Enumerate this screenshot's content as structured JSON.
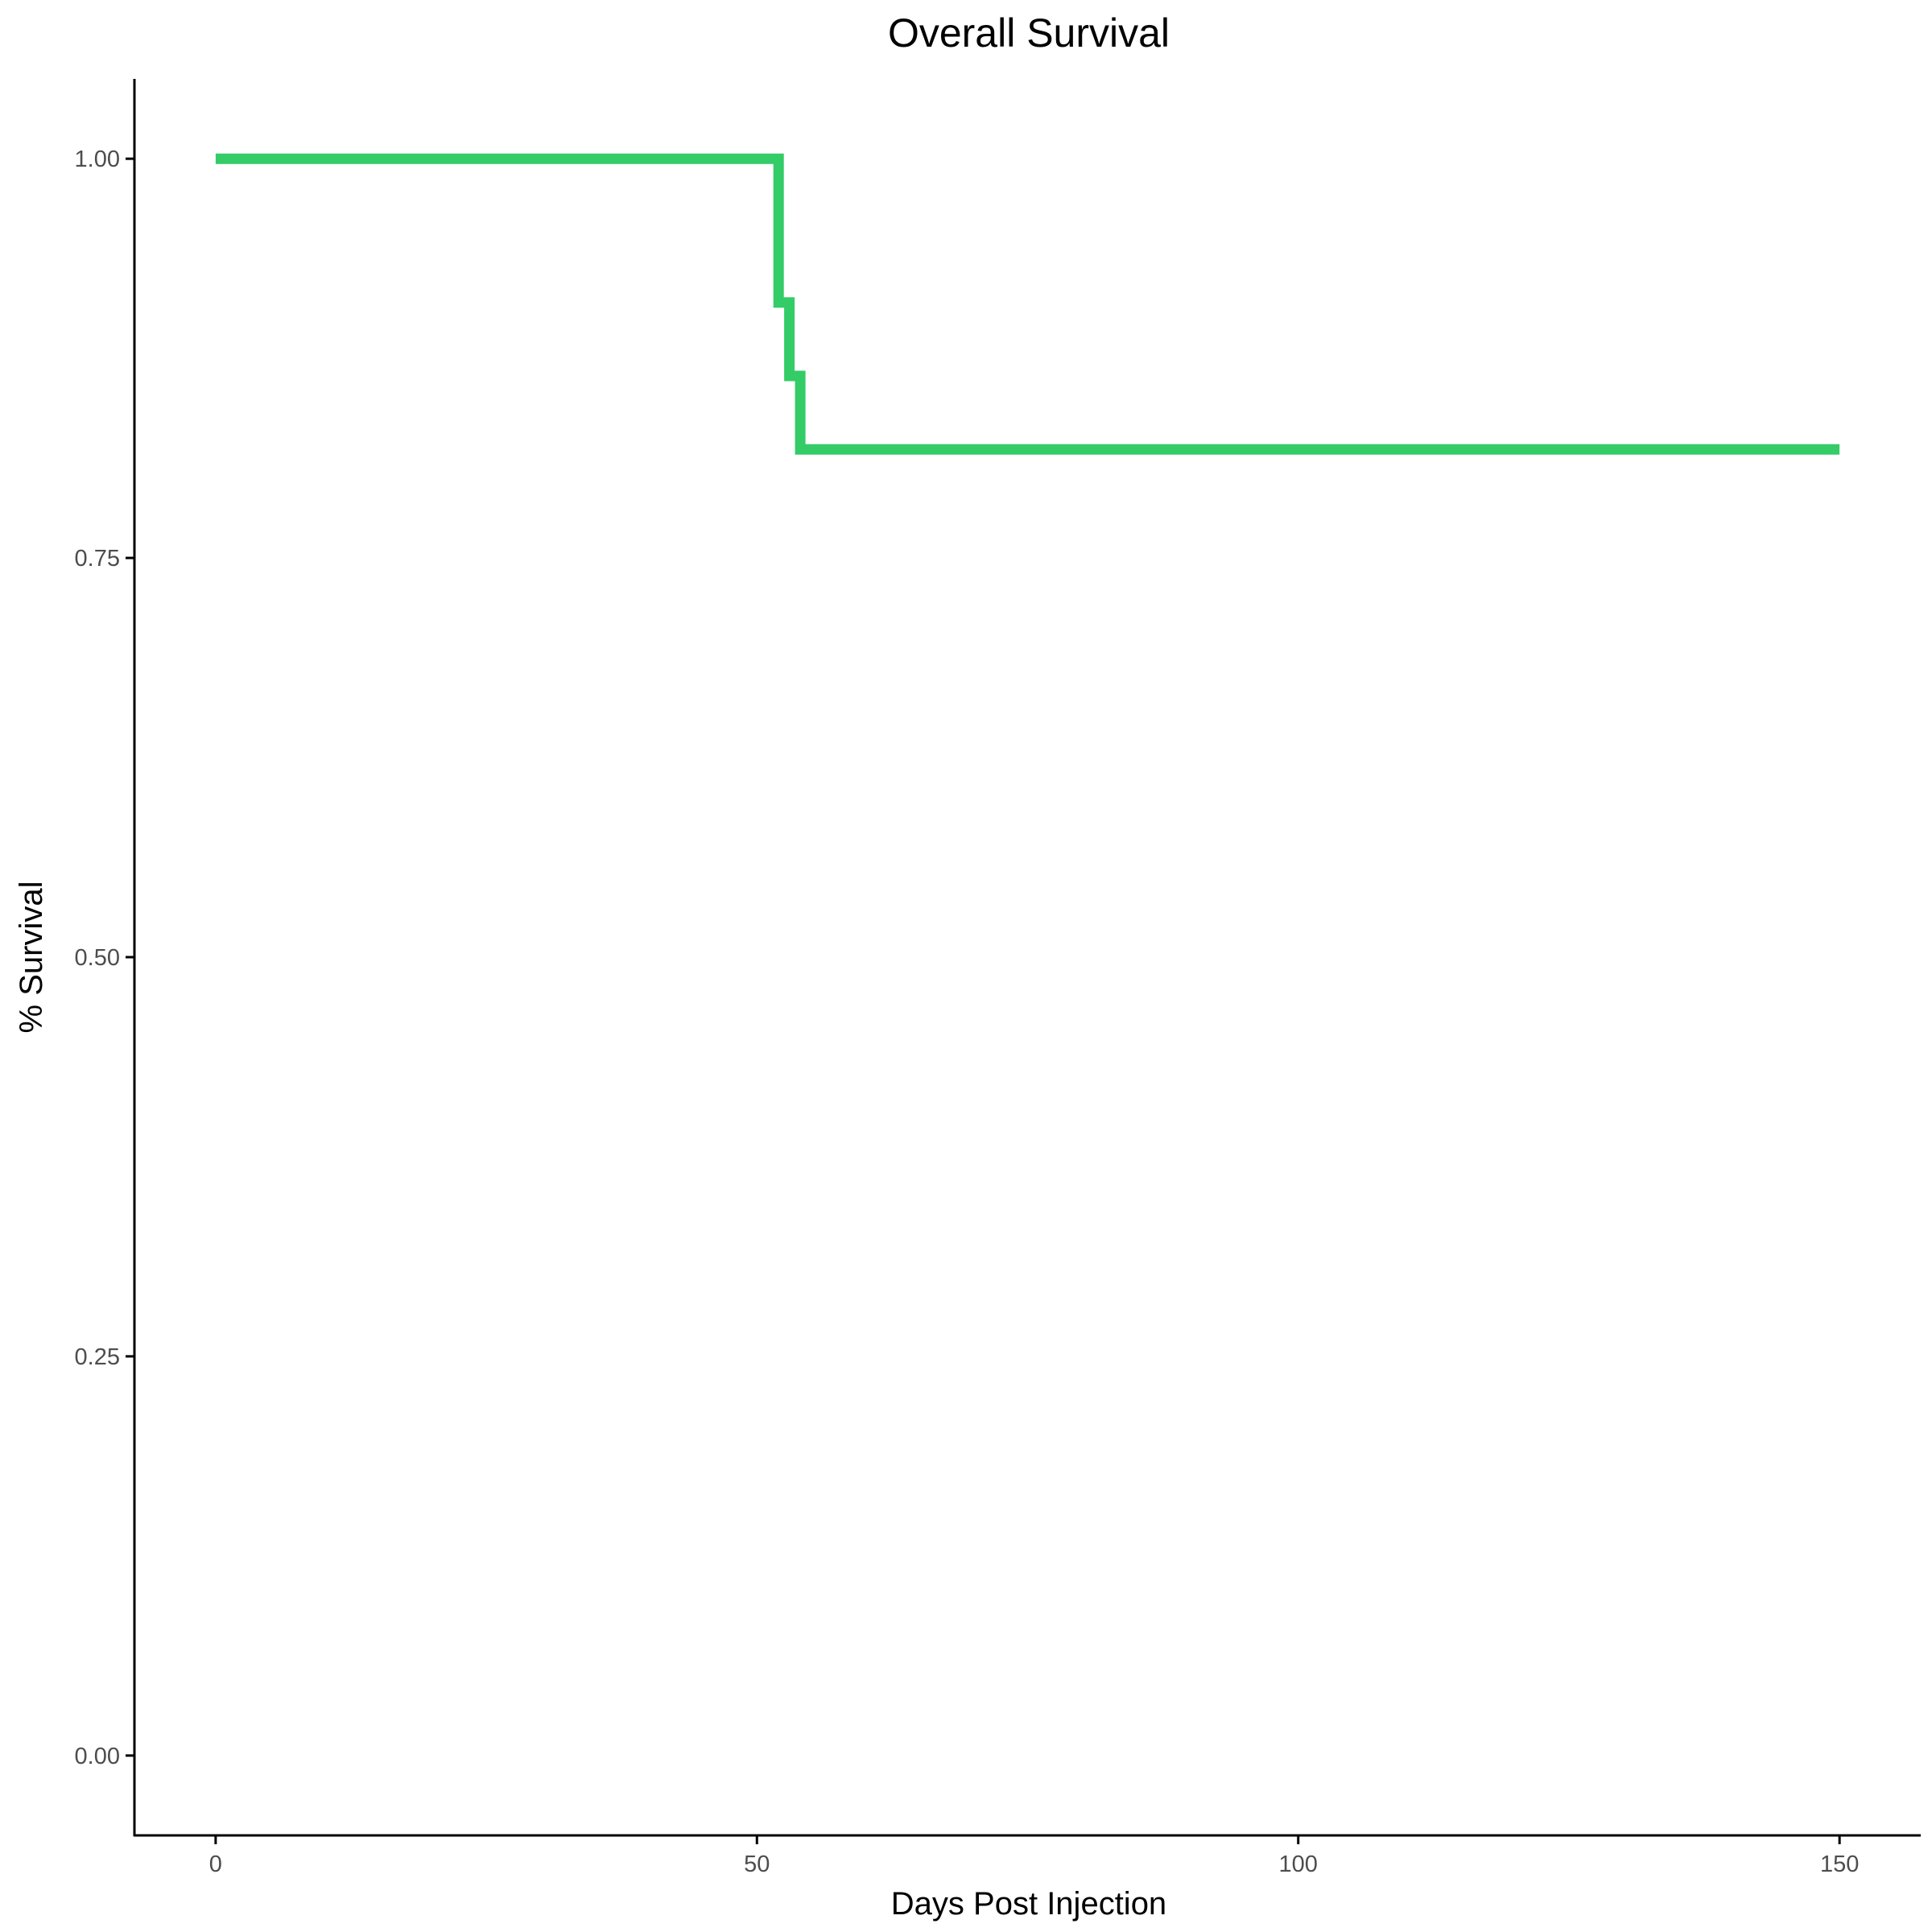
{
  "chart_data": {
    "type": "line",
    "step": true,
    "title": "Overall Survival",
    "xlabel": "Days Post Injection",
    "ylabel": "% Survival",
    "xlim": [
      -7.5,
      157.5
    ],
    "ylim": [
      -0.05,
      1.05
    ],
    "x_ticks": [
      0,
      50,
      100,
      150
    ],
    "x_tick_labels": [
      "0",
      "50",
      "100",
      "150"
    ],
    "y_ticks": [
      0,
      0.25,
      0.5,
      0.75,
      1.0
    ],
    "y_tick_labels": [
      "0.00",
      "0.25",
      "0.50",
      "0.75",
      "1.00"
    ],
    "grid": false,
    "legend": "none",
    "series": [
      {
        "color": "#33cc66",
        "points": [
          {
            "x": 0,
            "y": 1.0
          },
          {
            "x": 52,
            "y": 1.0
          },
          {
            "x": 52,
            "y": 0.91
          },
          {
            "x": 53,
            "y": 0.91
          },
          {
            "x": 53,
            "y": 0.864
          },
          {
            "x": 54,
            "y": 0.864
          },
          {
            "x": 54,
            "y": 0.818
          },
          {
            "x": 150,
            "y": 0.818
          }
        ]
      }
    ]
  }
}
